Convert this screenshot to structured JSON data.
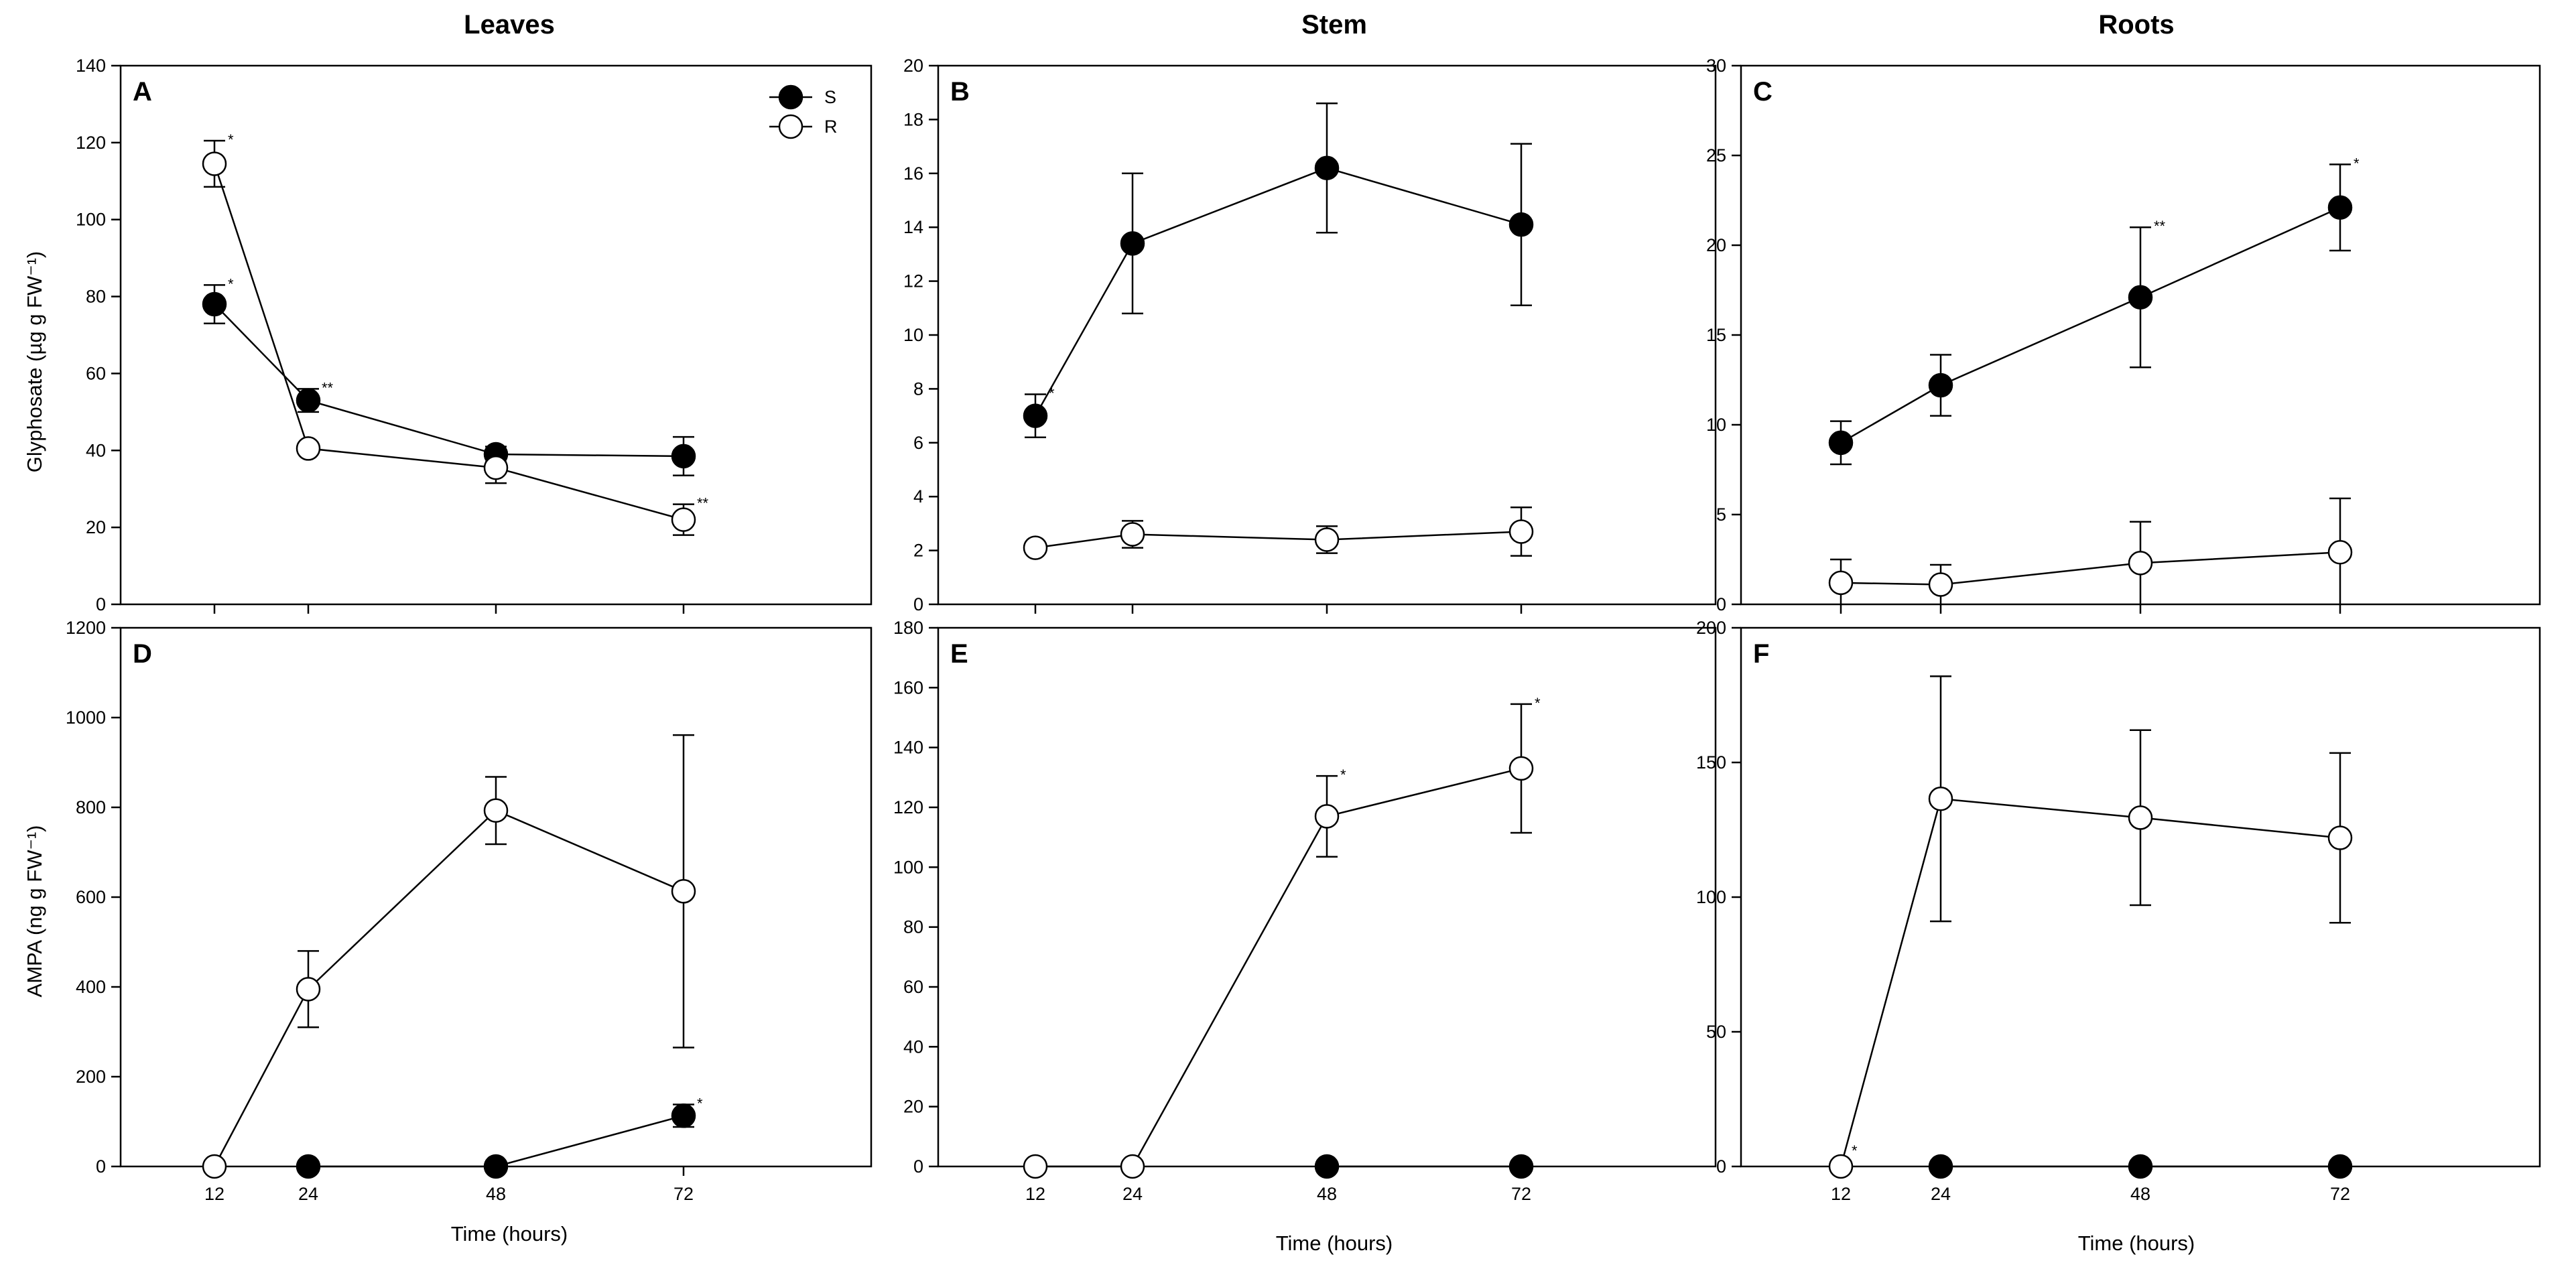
{
  "columns": [
    "Leaves",
    "Stem",
    "Roots"
  ],
  "xlabel": "Time (hours)",
  "legend": {
    "S": "S",
    "R": "R"
  },
  "chart_data": [
    {
      "panel": "A",
      "type": "line",
      "column": "Leaves",
      "ylabel": "Glyphosate (µg g FW⁻¹)",
      "x": [
        12,
        24,
        48,
        72
      ],
      "xlim": [
        0,
        96
      ],
      "xticks": [
        12,
        24,
        48,
        72
      ],
      "ylim": [
        0,
        140
      ],
      "yticks": [
        0,
        20,
        40,
        60,
        80,
        100,
        120,
        140
      ],
      "show_xticklabels": false,
      "legend": true,
      "series": [
        {
          "name": "S",
          "values": [
            78,
            53,
            39,
            38.5
          ],
          "errors": [
            5,
            3,
            2,
            5
          ],
          "sig": [
            "*",
            "**",
            "",
            ""
          ]
        },
        {
          "name": "R",
          "values": [
            114.5,
            40.5,
            35.5,
            22
          ],
          "errors": [
            6,
            0,
            4,
            4
          ],
          "sig": [
            "*",
            "",
            "",
            "**"
          ]
        }
      ]
    },
    {
      "panel": "B",
      "type": "line",
      "column": "Stem",
      "ylabel": "",
      "x": [
        12,
        24,
        48,
        72
      ],
      "xlim": [
        0,
        96
      ],
      "xticks": [
        12,
        24,
        48,
        72
      ],
      "ylim": [
        0,
        20
      ],
      "yticks": [
        0,
        2,
        4,
        6,
        8,
        10,
        12,
        14,
        16,
        18,
        20
      ],
      "show_xticklabels": false,
      "legend": false,
      "series": [
        {
          "name": "S",
          "values": [
            7,
            13.4,
            16.2,
            14.1
          ],
          "errors": [
            0.8,
            2.6,
            2.4,
            3.0
          ],
          "sig": [
            "*",
            "",
            "",
            ""
          ]
        },
        {
          "name": "R",
          "values": [
            2.1,
            2.6,
            2.4,
            2.7
          ],
          "errors": [
            0,
            0.5,
            0.5,
            0.9
          ],
          "sig": [
            "",
            "",
            "",
            ""
          ]
        }
      ]
    },
    {
      "panel": "C",
      "type": "line",
      "column": "Roots",
      "ylabel": "",
      "x": [
        12,
        24,
        48,
        72
      ],
      "xlim": [
        0,
        96
      ],
      "xticks": [
        12,
        24,
        48,
        72
      ],
      "ylim": [
        0,
        30
      ],
      "yticks": [
        0,
        5,
        10,
        15,
        20,
        25,
        30
      ],
      "show_xticklabels": false,
      "legend": false,
      "series": [
        {
          "name": "S",
          "values": [
            9,
            12.2,
            17.1,
            22.1
          ],
          "errors": [
            1.2,
            1.7,
            3.9,
            2.4
          ],
          "sig": [
            "",
            "",
            "**",
            "*"
          ]
        },
        {
          "name": "R",
          "values": [
            1.2,
            1.1,
            2.3,
            2.9
          ],
          "errors": [
            1.3,
            1.1,
            2.3,
            3.0
          ],
          "sig": [
            "",
            "",
            "",
            ""
          ]
        }
      ]
    },
    {
      "panel": "D",
      "type": "line",
      "column": "Leaves",
      "ylabel": "AMPA (ng g FW⁻¹)",
      "x": [
        12,
        24,
        48,
        72
      ],
      "xlim": [
        0,
        96
      ],
      "xticks": [
        12,
        24,
        48,
        72
      ],
      "ylim": [
        0,
        1200
      ],
      "yticks": [
        0,
        200,
        400,
        600,
        800,
        1000,
        1200
      ],
      "show_xticklabels": true,
      "legend": false,
      "series": [
        {
          "name": "S",
          "values": [
            null,
            0,
            0,
            113
          ],
          "errors": [
            0,
            0,
            0,
            25
          ],
          "sig": [
            "",
            "",
            "",
            "*"
          ]
        },
        {
          "name": "R",
          "values": [
            0,
            395,
            793,
            613
          ],
          "errors": [
            0,
            85,
            75,
            348
          ],
          "sig": [
            "",
            "",
            "",
            ""
          ]
        }
      ]
    },
    {
      "panel": "E",
      "type": "line",
      "column": "Stem",
      "ylabel": "",
      "x": [
        12,
        24,
        48,
        72
      ],
      "xlim": [
        0,
        96
      ],
      "xticks": [
        12,
        24,
        48,
        72
      ],
      "ylim": [
        0,
        180
      ],
      "yticks": [
        0,
        20,
        40,
        60,
        80,
        100,
        120,
        140,
        160,
        180
      ],
      "show_xticklabels": true,
      "legend": false,
      "series": [
        {
          "name": "S",
          "values": [
            null,
            null,
            0,
            0
          ],
          "errors": [
            0,
            0,
            0,
            0
          ],
          "sig": [
            "",
            "",
            "",
            ""
          ]
        },
        {
          "name": "R",
          "values": [
            0,
            0,
            117,
            133
          ],
          "errors": [
            0,
            0,
            13.5,
            21.5
          ],
          "sig": [
            "",
            "",
            "*",
            "*"
          ]
        }
      ]
    },
    {
      "panel": "F",
      "type": "line",
      "column": "Roots",
      "ylabel": "",
      "x": [
        12,
        24,
        48,
        72
      ],
      "xlim": [
        0,
        96
      ],
      "xticks": [
        12,
        24,
        48,
        72
      ],
      "ylim": [
        0,
        200
      ],
      "yticks": [
        0,
        50,
        100,
        150,
        200
      ],
      "show_xticklabels": true,
      "legend": false,
      "series": [
        {
          "name": "S",
          "values": [
            null,
            0,
            0,
            0
          ],
          "errors": [
            0,
            0,
            0,
            0
          ],
          "sig": [
            "",
            "",
            "",
            ""
          ]
        },
        {
          "name": "R",
          "values": [
            0,
            136.5,
            129.5,
            122
          ],
          "errors": [
            0,
            45.5,
            32.5,
            31.5
          ],
          "sig": [
            "*",
            "",
            "",
            ""
          ]
        }
      ]
    }
  ]
}
